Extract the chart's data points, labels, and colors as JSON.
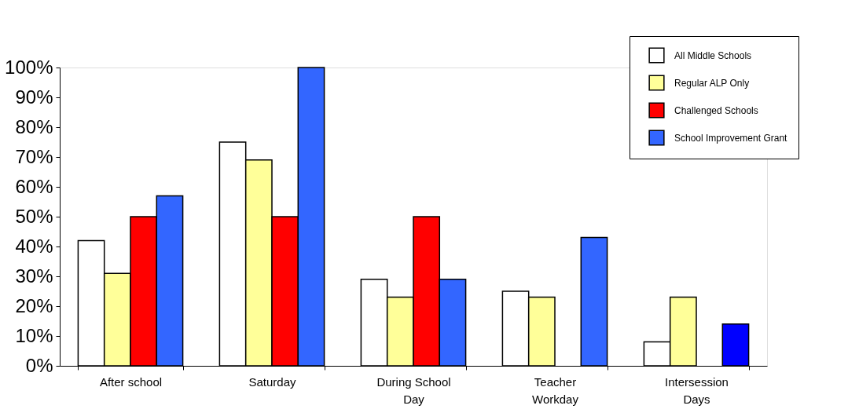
{
  "chart_data": {
    "type": "bar",
    "categories": [
      "After school",
      "Saturday",
      "During School Day",
      "Teacher Workday",
      "Intersession Days"
    ],
    "series": [
      {
        "name": "All Middle Schools",
        "color": "#ffffff",
        "values": [
          42,
          75,
          29,
          25,
          8
        ]
      },
      {
        "name": "Regular ALP Only",
        "color": "#ffff99",
        "values": [
          31,
          69,
          23,
          23,
          23
        ]
      },
      {
        "name": "Challenged Schools",
        "color": "#ff0000",
        "values": [
          50,
          50,
          50,
          null,
          null
        ]
      },
      {
        "name": "School Improvement Grant",
        "color": "#3366ff",
        "values": [
          57,
          100,
          29,
          43,
          14
        ],
        "colors": [
          "#3366ff",
          "#3366ff",
          "#3366ff",
          "#3366ff",
          "#0000ff"
        ]
      }
    ],
    "ylim": [
      0,
      100
    ],
    "yticks": [
      {
        "value": 0,
        "label": "0%"
      },
      {
        "value": 10,
        "label": "10%"
      },
      {
        "value": 20,
        "label": "20%"
      },
      {
        "value": 30,
        "label": "30%"
      },
      {
        "value": 40,
        "label": "40%"
      },
      {
        "value": 50,
        "label": "50%"
      },
      {
        "value": 60,
        "label": "60%"
      },
      {
        "value": 70,
        "label": "70%"
      },
      {
        "value": 80,
        "label": "80%"
      },
      {
        "value": 90,
        "label": "90%"
      },
      {
        "value": 100,
        "label": "100%"
      }
    ],
    "grid": false,
    "legend": "top right"
  }
}
